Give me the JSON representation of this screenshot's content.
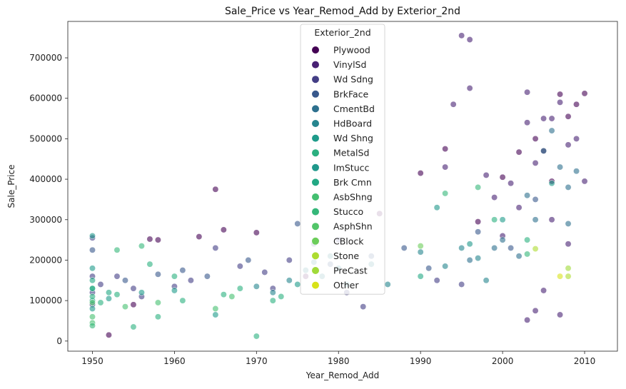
{
  "chart_data": {
    "type": "scatter",
    "title": "Sale_Price vs Year_Remod_Add by Exterior_2nd",
    "xlabel": "Year_Remod_Add",
    "ylabel": "Sale_Price",
    "xlim": [
      1947,
      2014
    ],
    "ylim": [
      -25000,
      790000
    ],
    "xticks": [
      1950,
      1960,
      1970,
      1980,
      1990,
      2000,
      2010
    ],
    "yticks": [
      0,
      100000,
      200000,
      300000,
      400000,
      500000,
      600000,
      700000
    ],
    "grid": false,
    "legend": {
      "title": "Exterior_2nd",
      "placement": "top-center",
      "entries": [
        "Plywood",
        "VinylSd",
        "Wd Sdng",
        "BrkFace",
        "CmentBd",
        "HdBoard",
        "Wd Shng",
        "MetalSd",
        "ImStucc",
        "Brk Cmn",
        "AsbShng",
        "Stucco",
        "AsphShn",
        "CBlock",
        "Stone",
        "PreCast",
        "Other"
      ]
    },
    "series": [
      {
        "name": "Plywood",
        "color": "#440154",
        "points": [
          [
            1965,
            375000
          ],
          [
            1966,
            275000
          ],
          [
            1957,
            252000
          ],
          [
            1958,
            250000
          ],
          [
            1963,
            258000
          ],
          [
            1970,
            268000
          ],
          [
            1990,
            415000
          ],
          [
            1997,
            295000
          ],
          [
            2000,
            405000
          ],
          [
            2002,
            467000
          ],
          [
            2004,
            500000
          ],
          [
            2005,
            470000
          ],
          [
            2007,
            610000
          ],
          [
            2008,
            555000
          ],
          [
            2009,
            585000
          ],
          [
            2010,
            612000
          ],
          [
            1993,
            475000
          ],
          [
            1985,
            315000
          ],
          [
            2006,
            395000
          ],
          [
            1976,
            160000
          ],
          [
            1955,
            90000
          ],
          [
            1952,
            15000
          ]
        ]
      },
      {
        "name": "VinylSd",
        "color": "#482173",
        "points": [
          [
            2003,
            615000
          ],
          [
            2007,
            590000
          ],
          [
            2009,
            500000
          ],
          [
            2006,
            550000
          ],
          [
            2005,
            550000
          ],
          [
            2008,
            485000
          ],
          [
            2010,
            395000
          ],
          [
            1996,
            625000
          ],
          [
            1995,
            755000
          ],
          [
            1996,
            745000
          ],
          [
            1994,
            585000
          ],
          [
            2004,
            440000
          ],
          [
            2001,
            390000
          ],
          [
            1999,
            355000
          ],
          [
            2003,
            540000
          ],
          [
            1998,
            410000
          ],
          [
            2002,
            330000
          ],
          [
            1993,
            430000
          ],
          [
            2006,
            300000
          ],
          [
            2008,
            240000
          ],
          [
            2000,
            260000
          ],
          [
            2005,
            125000
          ],
          [
            2004,
            75000
          ],
          [
            2003,
            52000
          ],
          [
            2007,
            65000
          ]
        ]
      },
      {
        "name": "Wd Sdng",
        "color": "#433e85",
        "points": [
          [
            1950,
            255000
          ],
          [
            1950,
            160000
          ],
          [
            1950,
            120000
          ],
          [
            1950,
            90000
          ],
          [
            1951,
            140000
          ],
          [
            1953,
            160000
          ],
          [
            1955,
            130000
          ],
          [
            1956,
            110000
          ],
          [
            1960,
            135000
          ],
          [
            1962,
            150000
          ],
          [
            1965,
            230000
          ],
          [
            1968,
            185000
          ],
          [
            1971,
            170000
          ],
          [
            1972,
            130000
          ],
          [
            1974,
            200000
          ],
          [
            1980,
            250000
          ],
          [
            1981,
            120000
          ],
          [
            1983,
            85000
          ],
          [
            1992,
            150000
          ],
          [
            1995,
            140000
          ]
        ]
      },
      {
        "name": "BrkFace",
        "color": "#38588c",
        "points": [
          [
            1950,
            225000
          ],
          [
            1954,
            150000
          ],
          [
            1958,
            165000
          ],
          [
            1961,
            175000
          ],
          [
            1964,
            160000
          ],
          [
            1969,
            200000
          ],
          [
            1975,
            290000
          ],
          [
            1977,
            240000
          ],
          [
            1979,
            190000
          ],
          [
            1984,
            210000
          ],
          [
            1988,
            230000
          ],
          [
            1991,
            180000
          ],
          [
            1997,
            270000
          ],
          [
            2001,
            230000
          ],
          [
            2004,
            350000
          ]
        ]
      },
      {
        "name": "CmentBd",
        "color": "#2d708e",
        "points": [
          [
            2005,
            470000
          ],
          [
            2007,
            430000
          ],
          [
            2008,
            380000
          ],
          [
            2006,
            520000
          ],
          [
            2009,
            420000
          ],
          [
            2003,
            360000
          ],
          [
            2004,
            300000
          ],
          [
            2000,
            250000
          ],
          [
            1999,
            230000
          ],
          [
            2002,
            210000
          ],
          [
            1996,
            200000
          ],
          [
            2008,
            290000
          ]
        ]
      },
      {
        "name": "HdBoard",
        "color": "#25858e",
        "points": [
          [
            1970,
            135000
          ],
          [
            1972,
            120000
          ],
          [
            1974,
            150000
          ],
          [
            1976,
            175000
          ],
          [
            1977,
            195000
          ],
          [
            1978,
            160000
          ],
          [
            1979,
            210000
          ],
          [
            1980,
            180000
          ],
          [
            1981,
            140000
          ],
          [
            1984,
            190000
          ],
          [
            1986,
            140000
          ],
          [
            1990,
            220000
          ],
          [
            1993,
            185000
          ],
          [
            1995,
            230000
          ],
          [
            1997,
            205000
          ],
          [
            1998,
            150000
          ]
        ]
      },
      {
        "name": "Wd Shng",
        "color": "#1e9b8a",
        "points": [
          [
            1950,
            180000
          ],
          [
            1950,
            100000
          ],
          [
            1956,
            120000
          ],
          [
            1965,
            65000
          ],
          [
            1950,
            80000
          ],
          [
            1952,
            105000
          ],
          [
            1960,
            125000
          ],
          [
            1975,
            140000
          ],
          [
            2000,
            300000
          ],
          [
            2006,
            390000
          ]
        ]
      },
      {
        "name": "MetalSd",
        "color": "#2ab07f",
        "points": [
          [
            1950,
            130000
          ],
          [
            1950,
            110000
          ],
          [
            1951,
            95000
          ],
          [
            1953,
            115000
          ],
          [
            1955,
            35000
          ],
          [
            1958,
            60000
          ],
          [
            1961,
            100000
          ],
          [
            1966,
            115000
          ],
          [
            1970,
            12000
          ],
          [
            1972,
            100000
          ],
          [
            1973,
            110000
          ],
          [
            1968,
            130000
          ],
          [
            1960,
            160000
          ],
          [
            1957,
            190000
          ],
          [
            1999,
            300000
          ],
          [
            2003,
            250000
          ]
        ]
      },
      {
        "name": "ImStucc",
        "color": "#1f988b",
        "points": [
          [
            1950,
            260000
          ],
          [
            1992,
            330000
          ],
          [
            1996,
            240000
          ]
        ]
      },
      {
        "name": "Brk Cmn",
        "color": "#22a884",
        "points": [
          [
            1950,
            150000
          ],
          [
            1950,
            130000
          ],
          [
            1952,
            120000
          ],
          [
            1990,
            160000
          ]
        ]
      },
      {
        "name": "AsbShng",
        "color": "#44bf70",
        "points": [
          [
            1950,
            60000
          ],
          [
            1950,
            45000
          ],
          [
            1954,
            85000
          ],
          [
            1958,
            95000
          ],
          [
            1965,
            80000
          ],
          [
            1967,
            110000
          ]
        ]
      },
      {
        "name": "Stucco",
        "color": "#35b779",
        "points": [
          [
            1950,
            38000
          ],
          [
            1953,
            225000
          ],
          [
            1956,
            235000
          ],
          [
            1993,
            365000
          ],
          [
            1997,
            380000
          ],
          [
            2003,
            215000
          ]
        ]
      },
      {
        "name": "AsphShn",
        "color": "#52c569",
        "points": [
          [
            1950,
            95000
          ]
        ]
      },
      {
        "name": "CBlock",
        "color": "#6ccd5a",
        "points": [
          [
            1990,
            235000
          ]
        ]
      },
      {
        "name": "Stone",
        "color": "#addc30",
        "points": [
          [
            2004,
            228000
          ],
          [
            2008,
            160000
          ]
        ]
      },
      {
        "name": "PreCast",
        "color": "#a0da39",
        "points": [
          [
            2008,
            180000
          ]
        ]
      },
      {
        "name": "Other",
        "color": "#d8e219",
        "points": [
          [
            2007,
            160000
          ]
        ]
      }
    ]
  }
}
